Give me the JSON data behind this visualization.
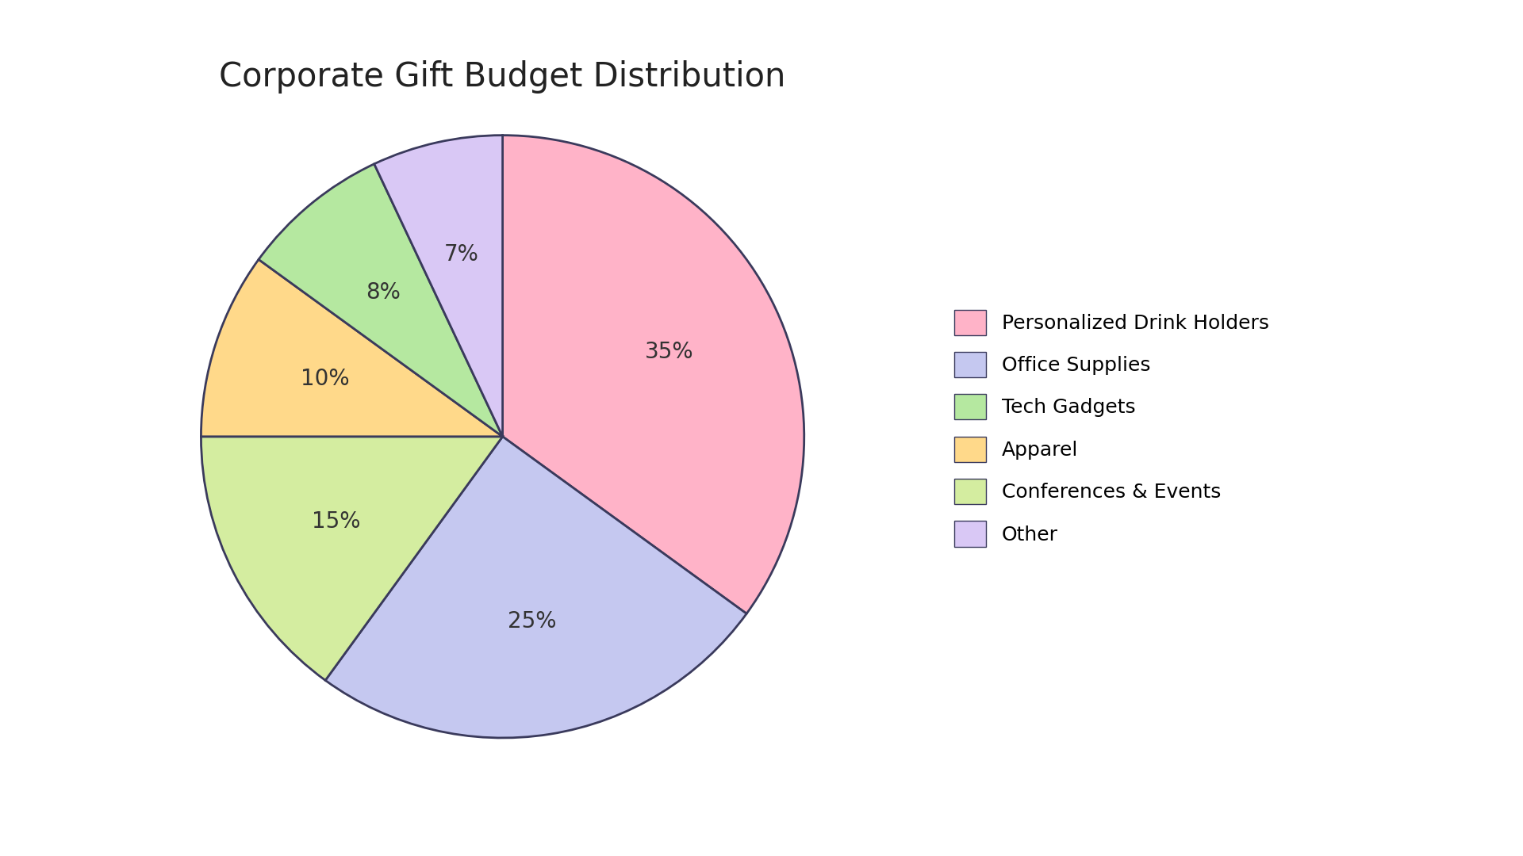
{
  "title": "Corporate Gift Budget Distribution",
  "slices": [
    {
      "label": "Personalized Drink Holders",
      "pct": 35,
      "color": "#FFB3C8"
    },
    {
      "label": "Office Supplies",
      "pct": 25,
      "color": "#C5C8F0"
    },
    {
      "label": "Conferences & Events",
      "pct": 15,
      "color": "#D4EDA0"
    },
    {
      "label": "Apparel",
      "pct": 10,
      "color": "#FFD98A"
    },
    {
      "label": "Tech Gadgets",
      "pct": 8,
      "color": "#B5E8A0"
    },
    {
      "label": "Other",
      "pct": 7,
      "color": "#D9C8F5"
    }
  ],
  "legend_order": [
    0,
    1,
    5,
    4,
    2,
    3
  ],
  "legend_labels": [
    "Personalized Drink Holders",
    "Office Supplies",
    "Tech Gadgets",
    "Apparel",
    "Conferences & Events",
    "Other"
  ],
  "legend_colors": [
    "#FFB3C8",
    "#C5C8F0",
    "#B5E8A0",
    "#FFD98A",
    "#D4EDA0",
    "#D9C8F5"
  ],
  "edge_color": "#3a3a5c",
  "edge_width": 2.0,
  "bg_color": "#FFFFFF",
  "title_fontsize": 30,
  "pct_fontsize": 20,
  "legend_fontsize": 18,
  "startangle": 90
}
